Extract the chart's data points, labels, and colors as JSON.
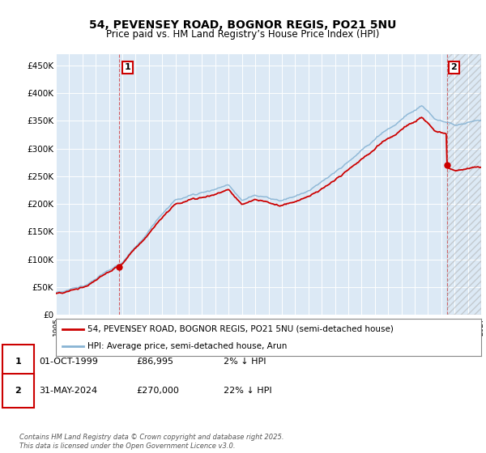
{
  "title": "54, PEVENSEY ROAD, BOGNOR REGIS, PO21 5NU",
  "subtitle": "Price paid vs. HM Land Registry’s House Price Index (HPI)",
  "ylim": [
    0,
    470000
  ],
  "yticks": [
    0,
    50000,
    100000,
    150000,
    200000,
    250000,
    300000,
    350000,
    400000,
    450000
  ],
  "ytick_labels": [
    "£0",
    "£50K",
    "£100K",
    "£150K",
    "£200K",
    "£250K",
    "£300K",
    "£350K",
    "£400K",
    "£450K"
  ],
  "background_color": "#ffffff",
  "plot_background": "#dce9f5",
  "grid_color": "#ffffff",
  "legend_label_red": "54, PEVENSEY ROAD, BOGNOR REGIS, PO21 5NU (semi-detached house)",
  "legend_label_blue": "HPI: Average price, semi-detached house, Arun",
  "red_color": "#cc0000",
  "blue_color": "#88b4d4",
  "annotation1_label": "1",
  "annotation1_date": "01-OCT-1999",
  "annotation1_price": "£86,995",
  "annotation1_hpi": "2% ↓ HPI",
  "annotation2_label": "2",
  "annotation2_date": "31-MAY-2024",
  "annotation2_price": "£270,000",
  "annotation2_hpi": "22% ↓ HPI",
  "footer": "Contains HM Land Registry data © Crown copyright and database right 2025.\nThis data is licensed under the Open Government Licence v3.0.",
  "title_fontsize": 10,
  "subtitle_fontsize": 8.5,
  "tick_fontsize": 7.5,
  "sale1_year": 1999.75,
  "sale1_price": 86995,
  "sale2_year": 2024.42,
  "sale2_price": 270000,
  "xstart": 1995,
  "xend": 2027
}
